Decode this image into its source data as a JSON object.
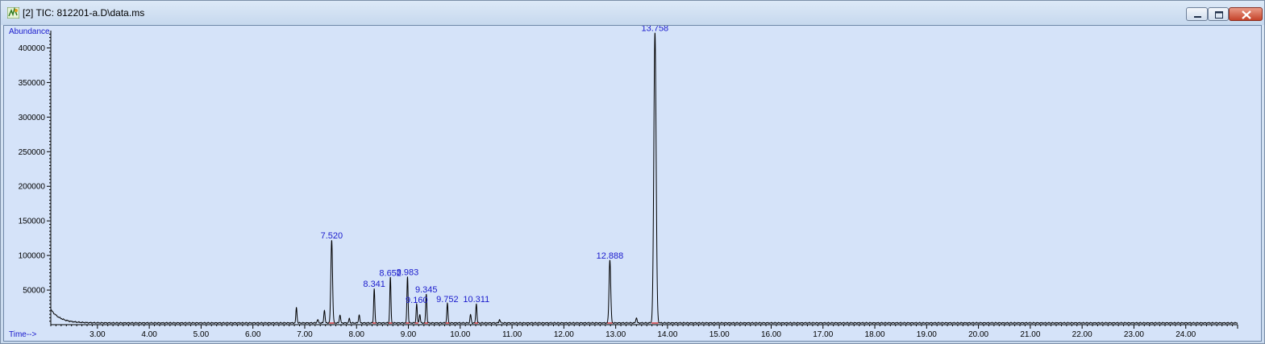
{
  "window": {
    "title": "[2] TIC: 812201-a.D\\data.ms",
    "icon": "chromatogram-app-icon",
    "controls": [
      "minimize",
      "maximize",
      "close"
    ]
  },
  "colors": {
    "plot_bg": "#d5e3f9",
    "trace": "#000000",
    "peak_label": "#1a1acc",
    "axis_label": "#1a1acc",
    "baseline_marker": "#d33a3a"
  },
  "chart_data": {
    "type": "line",
    "title": "",
    "ylabel": "Abundance",
    "xlabel": "Time-->",
    "xlim": [
      2.1,
      25.0
    ],
    "ylim": [
      0,
      425000
    ],
    "x_ticks": [
      "3.00",
      "4.00",
      "5.00",
      "6.00",
      "7.00",
      "8.00",
      "9.00",
      "10.00",
      "11.00",
      "12.00",
      "13.00",
      "14.00",
      "15.00",
      "16.00",
      "17.00",
      "18.00",
      "19.00",
      "20.00",
      "21.00",
      "22.00",
      "23.00",
      "24.00"
    ],
    "y_ticks": [
      "50000",
      "100000",
      "150000",
      "200000",
      "250000",
      "300000",
      "350000",
      "400000"
    ],
    "grid": false,
    "baseline": {
      "level": 2500,
      "start_level": 22000,
      "decay": 0.18
    },
    "peaks": [
      {
        "rt": 6.84,
        "height": 22000,
        "labeled": false
      },
      {
        "rt": 7.25,
        "height": 5000,
        "labeled": false
      },
      {
        "rt": 7.38,
        "height": 19000,
        "labeled": false
      },
      {
        "rt": 7.52,
        "height": 120000,
        "labeled": true,
        "label": "7.520"
      },
      {
        "rt": 7.68,
        "height": 12000,
        "labeled": false
      },
      {
        "rt": 7.86,
        "height": 6000,
        "labeled": false
      },
      {
        "rt": 8.05,
        "height": 12000,
        "labeled": false
      },
      {
        "rt": 8.341,
        "height": 50000,
        "labeled": true,
        "label": "8.341"
      },
      {
        "rt": 8.652,
        "height": 66000,
        "labeled": true,
        "label": "8.652"
      },
      {
        "rt": 8.983,
        "height": 67000,
        "labeled": true,
        "label": "8.983"
      },
      {
        "rt": 9.16,
        "height": 27000,
        "labeled": true,
        "label": "9.160"
      },
      {
        "rt": 9.22,
        "height": 12000,
        "labeled": false
      },
      {
        "rt": 9.345,
        "height": 42000,
        "labeled": true,
        "label": "9.345"
      },
      {
        "rt": 9.752,
        "height": 28000,
        "labeled": true,
        "label": "9.752"
      },
      {
        "rt": 10.2,
        "height": 12000,
        "labeled": false
      },
      {
        "rt": 10.311,
        "height": 28000,
        "labeled": true,
        "label": "10.311"
      },
      {
        "rt": 10.76,
        "height": 5000,
        "labeled": false
      },
      {
        "rt": 12.888,
        "height": 91000,
        "labeled": true,
        "label": "12.888"
      },
      {
        "rt": 13.4,
        "height": 8000,
        "labeled": false
      },
      {
        "rt": 13.758,
        "height": 420000,
        "labeled": true,
        "label": "13.758"
      }
    ]
  }
}
